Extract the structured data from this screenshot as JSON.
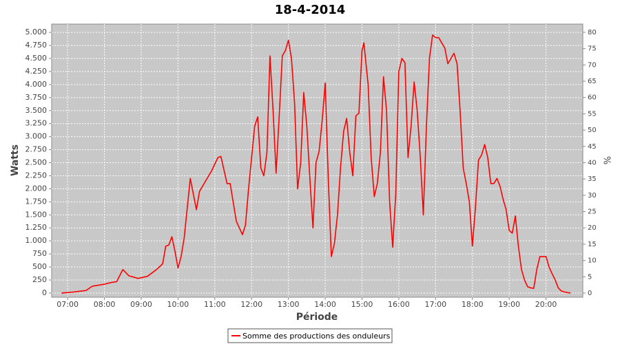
{
  "chart_data": {
    "type": "line",
    "title": "18-4-2014",
    "x_label": "Période",
    "y_label": "Watts",
    "y2_label": "%",
    "x": [
      "06:50",
      "07:10",
      "07:30",
      "07:40",
      "08:00",
      "08:10",
      "08:20",
      "08:30",
      "08:40",
      "08:55",
      "09:10",
      "09:25",
      "09:35",
      "09:40",
      "09:45",
      "09:50",
      "09:55",
      "10:00",
      "10:05",
      "10:10",
      "10:20",
      "10:30",
      "10:35",
      "10:45",
      "10:55",
      "11:05",
      "11:10",
      "11:20",
      "11:25",
      "11:35",
      "11:45",
      "11:50",
      "11:55",
      "12:05",
      "12:10",
      "12:15",
      "12:20",
      "12:25",
      "12:30",
      "12:35",
      "12:40",
      "12:45",
      "12:50",
      "12:55",
      "13:00",
      "13:05",
      "13:10",
      "13:15",
      "13:20",
      "13:25",
      "13:30",
      "13:35",
      "13:40",
      "13:45",
      "13:50",
      "13:55",
      "14:00",
      "14:05",
      "14:10",
      "14:15",
      "14:20",
      "14:25",
      "14:30",
      "14:35",
      "14:40",
      "14:45",
      "14:50",
      "14:55",
      "15:00",
      "15:03",
      "15:10",
      "15:15",
      "15:20",
      "15:25",
      "15:30",
      "15:35",
      "15:40",
      "15:45",
      "15:50",
      "15:55",
      "16:00",
      "16:05",
      "16:10",
      "16:15",
      "16:20",
      "16:25",
      "16:30",
      "16:35",
      "16:40",
      "16:45",
      "16:50",
      "16:55",
      "17:00",
      "17:05",
      "17:10",
      "17:15",
      "17:20",
      "17:25",
      "17:30",
      "17:35",
      "17:40",
      "17:45",
      "17:50",
      "17:55",
      "18:00",
      "18:05",
      "18:10",
      "18:15",
      "18:20",
      "18:25",
      "18:30",
      "18:35",
      "18:40",
      "18:45",
      "18:50",
      "18:55",
      "19:00",
      "19:05",
      "19:10",
      "19:15",
      "19:20",
      "19:25",
      "19:30",
      "19:35",
      "19:40",
      "19:45",
      "19:50",
      "19:55",
      "20:00",
      "20:05",
      "20:10",
      "20:15",
      "20:20",
      "20:25",
      "20:30",
      "20:35",
      "20:40"
    ],
    "series": [
      {
        "name": "Somme des productions des onduleurs",
        "color": "#ff0000",
        "values": [
          0,
          20,
          50,
          130,
          170,
          200,
          220,
          450,
          330,
          280,
          320,
          450,
          560,
          900,
          920,
          1080,
          800,
          480,
          700,
          1050,
          2200,
          1600,
          1950,
          2150,
          2350,
          2600,
          2620,
          2100,
          2100,
          1380,
          1120,
          1300,
          2000,
          3200,
          3380,
          2400,
          2250,
          2700,
          4550,
          3500,
          2300,
          3400,
          4550,
          4650,
          4850,
          4500,
          3650,
          2000,
          2500,
          3850,
          3200,
          2200,
          1250,
          2500,
          2720,
          3300,
          4030,
          2200,
          700,
          950,
          1500,
          2400,
          3100,
          3350,
          2700,
          2250,
          3400,
          3450,
          4650,
          4800,
          4000,
          2600,
          1850,
          2100,
          2700,
          4150,
          3500,
          1750,
          880,
          1900,
          4250,
          4500,
          4420,
          2600,
          3200,
          4050,
          3500,
          2600,
          1500,
          3200,
          4500,
          4950,
          4900,
          4900,
          4800,
          4700,
          4400,
          4500,
          4600,
          4400,
          3500,
          2400,
          2100,
          1750,
          900,
          1650,
          2550,
          2650,
          2850,
          2600,
          2100,
          2100,
          2200,
          2050,
          1800,
          1600,
          1200,
          1150,
          1480,
          900,
          450,
          250,
          120,
          100,
          90,
          450,
          700,
          700,
          700,
          500,
          370,
          250,
          100,
          40,
          20,
          10,
          0
        ]
      }
    ],
    "xlim": [
      "06:34",
      "21:00"
    ],
    "xticks": [
      "07:00",
      "08:00",
      "09:00",
      "10:00",
      "11:00",
      "12:00",
      "13:00",
      "14:00",
      "15:00",
      "16:00",
      "17:00",
      "18:00",
      "19:00",
      "20:00"
    ],
    "ylim": [
      -80,
      5160
    ],
    "yticks": [
      0,
      250,
      500,
      750,
      {
        "value": 1000,
        "label": "1.000"
      },
      {
        "value": 1250,
        "label": "1.250"
      },
      {
        "value": 1500,
        "label": "1.500"
      },
      {
        "value": 1750,
        "label": "1.750"
      },
      {
        "value": 2000,
        "label": "2.000"
      },
      {
        "value": 2250,
        "label": "2.250"
      },
      {
        "value": 2500,
        "label": "2.500"
      },
      {
        "value": 2750,
        "label": "2.750"
      },
      {
        "value": 3000,
        "label": "3.000"
      },
      {
        "value": 3250,
        "label": "3.250"
      },
      {
        "value": 3500,
        "label": "3.500"
      },
      {
        "value": 3750,
        "label": "3.750"
      },
      {
        "value": 4000,
        "label": "4.000"
      },
      {
        "value": 4250,
        "label": "4.250"
      },
      {
        "value": 4500,
        "label": "4.500"
      },
      {
        "value": 4750,
        "label": "4.750"
      },
      {
        "value": 5000,
        "label": "5.000"
      }
    ],
    "y2lim": [
      -1.27,
      82.53
    ],
    "y2ticks": [
      0,
      5,
      10,
      15,
      20,
      25,
      30,
      35,
      40,
      45,
      50,
      55,
      60,
      65,
      70,
      75,
      80
    ],
    "grid": true
  }
}
